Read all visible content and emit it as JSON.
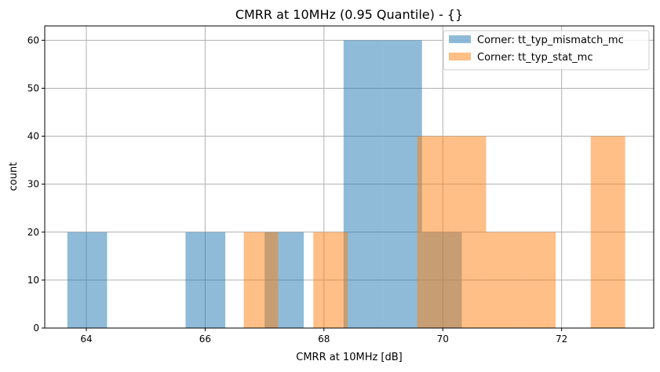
{
  "chart_data": {
    "type": "bar",
    "title": "CMRR at 10MHz (0.95 Quantile) - {}",
    "xlabel": "CMRR at 10MHz [dB]",
    "ylabel": "count",
    "xlim": [
      63.3,
      73.55
    ],
    "ylim": [
      0,
      63
    ],
    "xticks": [
      64,
      66,
      68,
      70,
      72
    ],
    "yticks": [
      0,
      10,
      20,
      30,
      40,
      50,
      60
    ],
    "grid": true,
    "legend_position": "top-right",
    "series": [
      {
        "name": "Corner: tt_typ_mismatch_mc",
        "color": "#1f77b4",
        "alpha": 0.5,
        "bin_edges": [
          63.68,
          64.35,
          65.01,
          65.67,
          66.34,
          67.0,
          67.66,
          68.33,
          68.99,
          69.65,
          70.32
        ],
        "counts": [
          20,
          0,
          0,
          20,
          0,
          20,
          0,
          60,
          60,
          20
        ]
      },
      {
        "name": "Corner: tt_typ_stat_mc",
        "color": "#ff7f0e",
        "alpha": 0.5,
        "bin_edges": [
          66.65,
          67.23,
          67.82,
          68.4,
          68.98,
          69.57,
          70.15,
          70.73,
          71.32,
          71.9,
          72.49,
          73.07
        ],
        "counts": [
          20,
          0,
          20,
          0,
          0,
          40,
          40,
          20,
          20,
          0,
          40
        ]
      }
    ]
  }
}
